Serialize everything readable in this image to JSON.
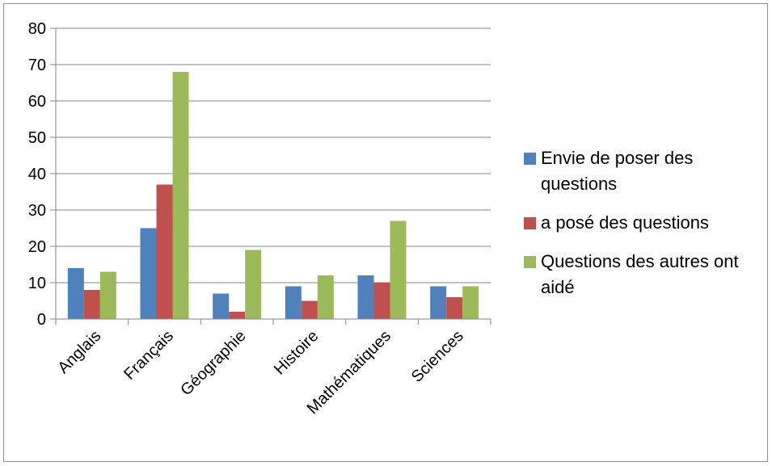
{
  "chart_data": {
    "type": "bar",
    "categories": [
      "Anglais",
      "Français",
      "Géographie",
      "Histoire",
      "Mathématiques",
      "Sciences"
    ],
    "series": [
      {
        "name": "Envie de poser des questions",
        "values": [
          14,
          25,
          7,
          9,
          12,
          9
        ],
        "color": "#4f81bd"
      },
      {
        "name": "a posé des questions",
        "values": [
          8,
          37,
          2,
          5,
          10,
          6
        ],
        "color": "#c0504d"
      },
      {
        "name": "Questions des autres ont aidé",
        "values": [
          13,
          68,
          19,
          12,
          27,
          9
        ],
        "color": "#9bbb59"
      }
    ],
    "ylim": [
      0,
      80
    ],
    "yticks": [
      0,
      10,
      20,
      30,
      40,
      50,
      60,
      70,
      80
    ],
    "grid": true,
    "legend_position": "right"
  }
}
